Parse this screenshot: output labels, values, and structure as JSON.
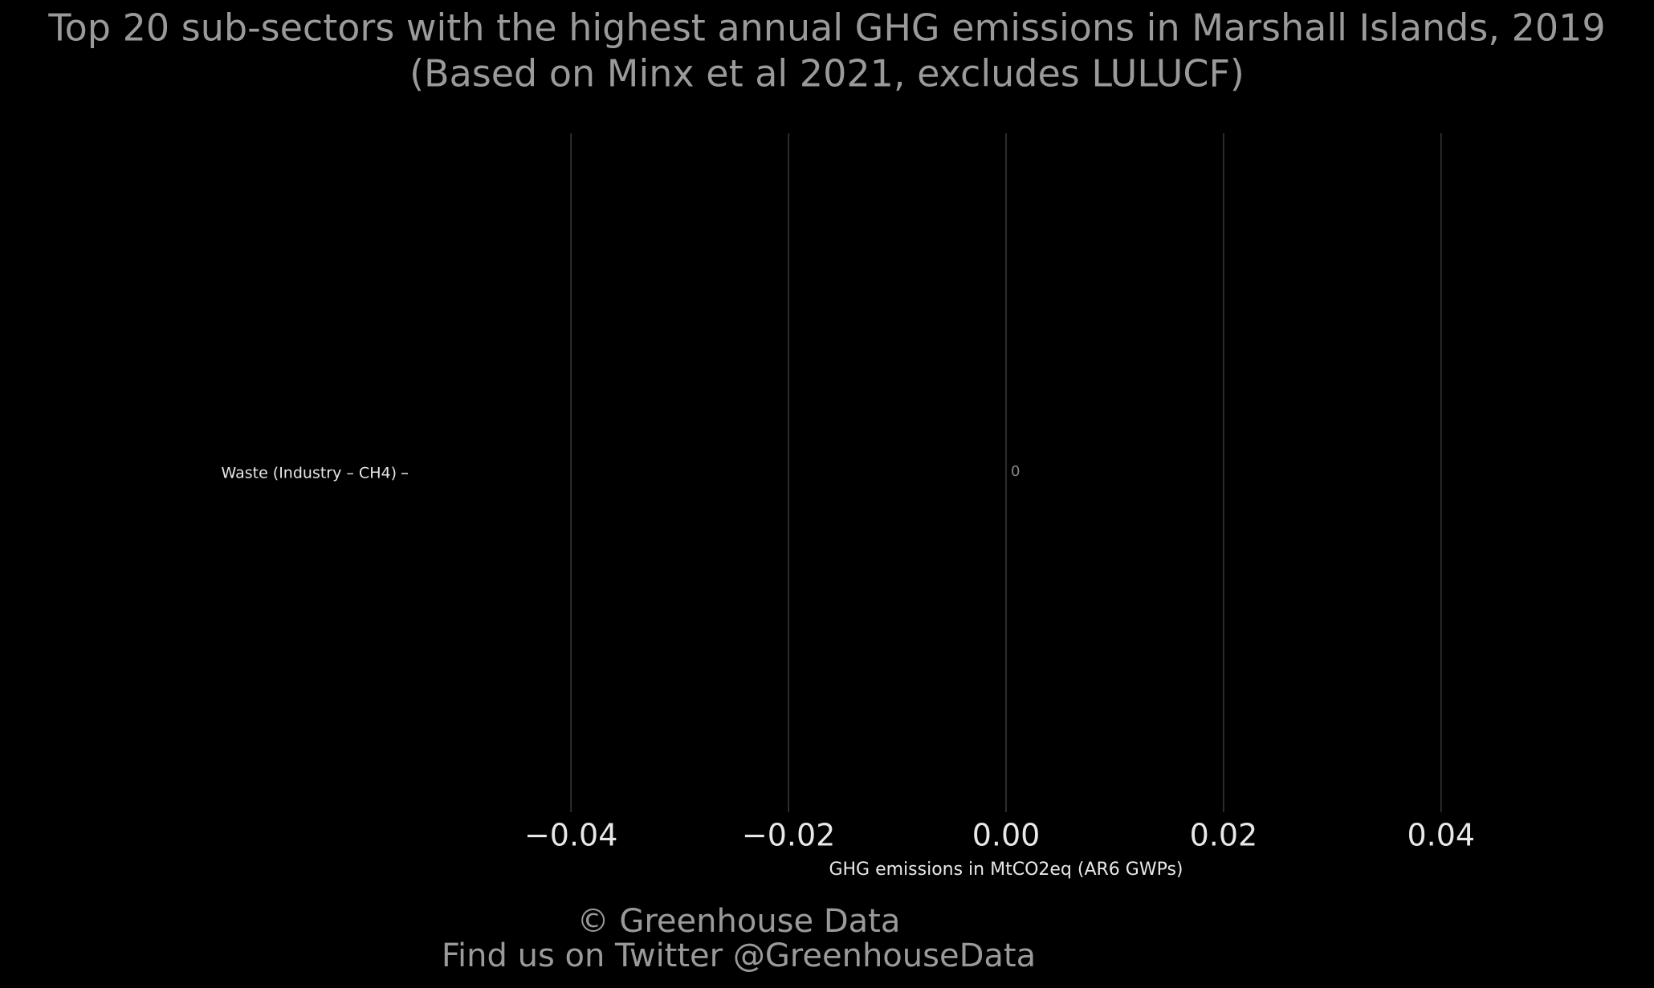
{
  "chart_data": {
    "type": "bar",
    "orientation": "horizontal",
    "title": "Top 20 sub-sectors with the highest annual GHG emissions in Marshall Islands, 2019",
    "subtitle": "(Based on Minx et al 2021, excludes LULUCF)",
    "categories": [
      "Waste (Industry – CH4)"
    ],
    "values": [
      0
    ],
    "value_labels": [
      "0"
    ],
    "xlabel": "GHG emissions in MtCO2eq (AR6 GWPs)",
    "xlim": [
      -0.055,
      0.055
    ],
    "xticks": [
      {
        "value": -0.04,
        "label": "−0.04"
      },
      {
        "value": -0.02,
        "label": "−0.02"
      },
      {
        "value": 0,
        "label": "0.00"
      },
      0.02,
      0.04
    ],
    "grid": true,
    "caption": [
      "© Greenhouse Data",
      "Find us on Twitter @GreenhouseData"
    ]
  }
}
